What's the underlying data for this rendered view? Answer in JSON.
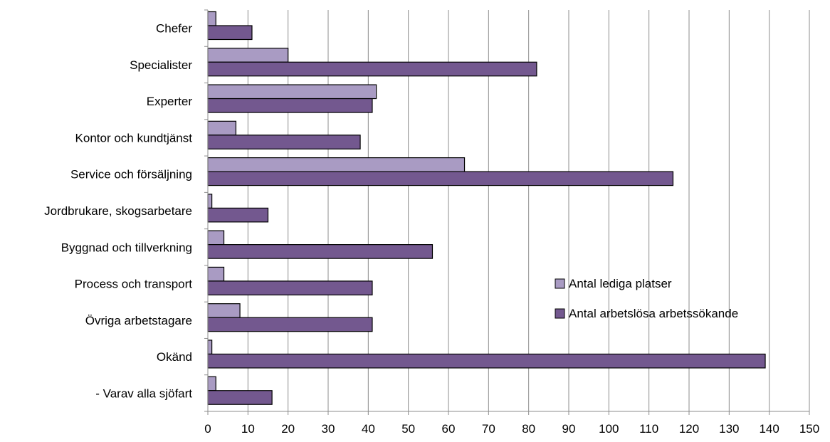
{
  "chart_data": {
    "type": "bar",
    "orientation": "horizontal",
    "categories": [
      "Chefer",
      "Specialister",
      "Experter",
      "Kontor och kundtjänst",
      "Service och försäljning",
      "Jordbrukare, skogsarbetare",
      "Byggnad och tillverkning",
      "Process och transport",
      "Övriga arbetstagare",
      "Okänd",
      "- Varav alla sjöfart"
    ],
    "series": [
      {
        "name": "Antal lediga platser",
        "color": "#a99bc3",
        "values": [
          2,
          20,
          42,
          7,
          64,
          1,
          4,
          4,
          8,
          1,
          2
        ]
      },
      {
        "name": "Antal arbetslösa arbetssökande",
        "color": "#73588f",
        "values": [
          11,
          82,
          41,
          38,
          116,
          15,
          56,
          41,
          41,
          139,
          16
        ]
      }
    ],
    "xlim": [
      0,
      150
    ],
    "xticks": [
      "0",
      "10",
      "20",
      "30",
      "40",
      "50",
      "60",
      "70",
      "80",
      "90",
      "100",
      "110",
      "120",
      "130",
      "140",
      "150"
    ],
    "grid": "vertical",
    "legend_position": "right",
    "title": "",
    "xlabel": "",
    "ylabel": ""
  }
}
